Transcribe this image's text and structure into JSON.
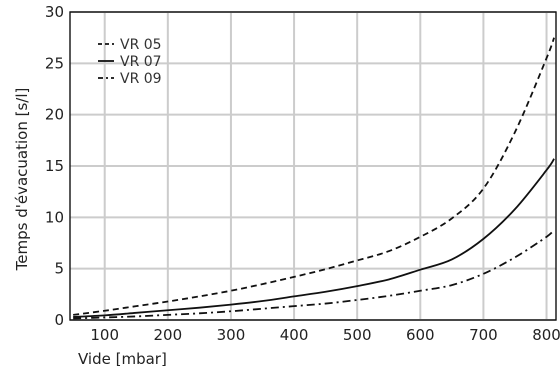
{
  "chart_data": {
    "type": "line",
    "title": "",
    "xlabel": "Vide [mbar]",
    "ylabel": "Temps d'évacuation [s/l]",
    "xlim": [
      45,
      815
    ],
    "ylim": [
      0,
      30
    ],
    "xticks": [
      100,
      200,
      300,
      400,
      500,
      600,
      700,
      800
    ],
    "yticks": [
      0,
      5,
      10,
      15,
      20,
      25,
      30
    ],
    "grid": true,
    "legend_position": "top-left",
    "series": [
      {
        "name": "VR 05",
        "dash": "dashed",
        "x": [
          50,
          100,
          150,
          200,
          250,
          300,
          350,
          400,
          450,
          500,
          550,
          600,
          650,
          700,
          750,
          800,
          812
        ],
        "y": [
          0.5,
          0.9,
          1.35,
          1.8,
          2.3,
          2.85,
          3.5,
          4.2,
          4.95,
          5.8,
          6.7,
          8.1,
          9.9,
          12.8,
          18.3,
          25.5,
          27.5
        ]
      },
      {
        "name": "VR 07",
        "dash": "solid",
        "x": [
          50,
          100,
          150,
          200,
          250,
          300,
          350,
          400,
          450,
          500,
          550,
          600,
          650,
          700,
          750,
          800,
          812
        ],
        "y": [
          0.3,
          0.45,
          0.7,
          0.95,
          1.2,
          1.5,
          1.85,
          2.3,
          2.75,
          3.3,
          3.95,
          4.9,
          5.9,
          7.9,
          10.8,
          14.6,
          15.7
        ]
      },
      {
        "name": "VR 09",
        "dash": "dashdot",
        "x": [
          50,
          100,
          150,
          200,
          250,
          300,
          350,
          400,
          450,
          500,
          550,
          600,
          650,
          700,
          750,
          800,
          812
        ],
        "y": [
          0.15,
          0.25,
          0.35,
          0.5,
          0.65,
          0.85,
          1.1,
          1.35,
          1.6,
          1.95,
          2.35,
          2.85,
          3.4,
          4.5,
          6.1,
          8.1,
          8.8
        ]
      }
    ]
  }
}
